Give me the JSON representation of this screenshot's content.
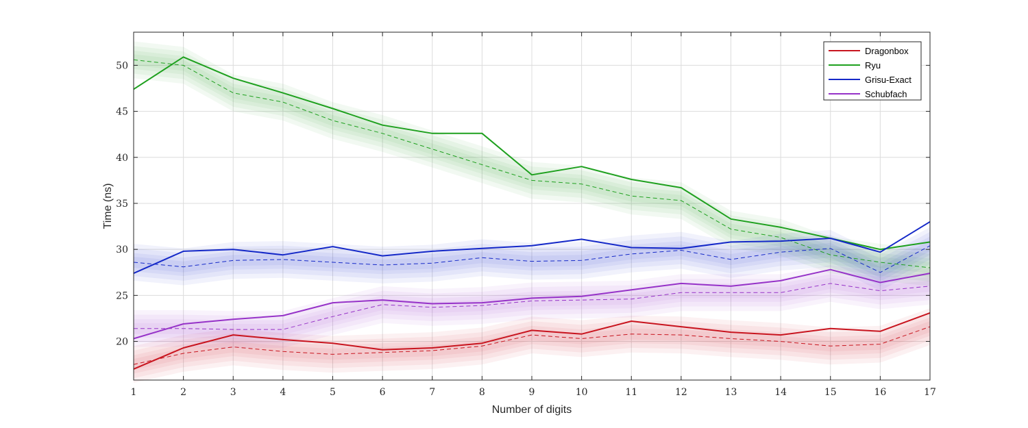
{
  "chart_data": {
    "type": "line",
    "title": "",
    "xlabel": "Number of digits",
    "ylabel": "Time (ns)",
    "xlim": [
      1,
      17
    ],
    "ylim": [
      15.8,
      53.6
    ],
    "x": [
      1,
      2,
      3,
      4,
      5,
      6,
      7,
      8,
      9,
      10,
      11,
      12,
      13,
      14,
      15,
      16,
      17
    ],
    "xticks": [
      1,
      2,
      3,
      4,
      5,
      6,
      7,
      8,
      9,
      10,
      11,
      12,
      13,
      14,
      15,
      16,
      17
    ],
    "yticks": [
      20,
      25,
      30,
      35,
      40,
      45,
      50
    ],
    "grid": true,
    "legend_position": "top-right",
    "series": [
      {
        "name": "Dragonbox",
        "color": "#c8141e",
        "values": [
          17.0,
          19.3,
          20.7,
          20.2,
          19.8,
          19.1,
          19.3,
          19.8,
          21.2,
          20.8,
          22.2,
          21.6,
          21.0,
          20.7,
          21.4,
          21.1,
          23.1
        ],
        "dashed_values": [
          17.5,
          18.7,
          19.4,
          18.9,
          18.6,
          18.8,
          19.0,
          19.5,
          20.7,
          20.3,
          20.8,
          20.7,
          20.3,
          20.0,
          19.5,
          19.7,
          21.6
        ]
      },
      {
        "name": "Ryu",
        "color": "#1ea01e",
        "values": [
          47.4,
          50.9,
          48.6,
          47.0,
          45.3,
          43.5,
          42.6,
          42.6,
          38.1,
          39.0,
          37.6,
          36.7,
          33.3,
          32.4,
          31.2,
          30.0,
          30.8
        ],
        "dashed_values": [
          50.6,
          50.0,
          47.0,
          46.0,
          44.0,
          42.6,
          40.9,
          39.2,
          37.5,
          37.1,
          35.8,
          35.3,
          32.2,
          31.3,
          29.4,
          28.6,
          28.0
        ]
      },
      {
        "name": "Grisu-Exact",
        "color": "#1428c8",
        "values": [
          27.4,
          29.8,
          30.0,
          29.4,
          30.3,
          29.3,
          29.8,
          30.1,
          30.4,
          31.1,
          30.2,
          30.1,
          30.8,
          30.9,
          31.2,
          29.7,
          33.0
        ],
        "dashed_values": [
          28.6,
          28.1,
          28.8,
          28.9,
          28.6,
          28.3,
          28.5,
          29.1,
          28.7,
          28.8,
          29.5,
          29.9,
          28.9,
          29.7,
          30.1,
          27.5,
          30.4
        ]
      },
      {
        "name": "Schubfach",
        "color": "#9632c8",
        "values": [
          20.3,
          21.9,
          22.4,
          22.8,
          24.2,
          24.5,
          24.1,
          24.2,
          24.7,
          24.9,
          25.6,
          26.3,
          26.0,
          26.6,
          27.8,
          26.4,
          27.4
        ],
        "dashed_values": [
          21.4,
          21.4,
          21.3,
          21.3,
          22.7,
          24.0,
          23.7,
          23.9,
          24.4,
          24.5,
          24.6,
          25.3,
          25.3,
          25.3,
          26.3,
          25.5,
          26.0
        ]
      }
    ]
  }
}
